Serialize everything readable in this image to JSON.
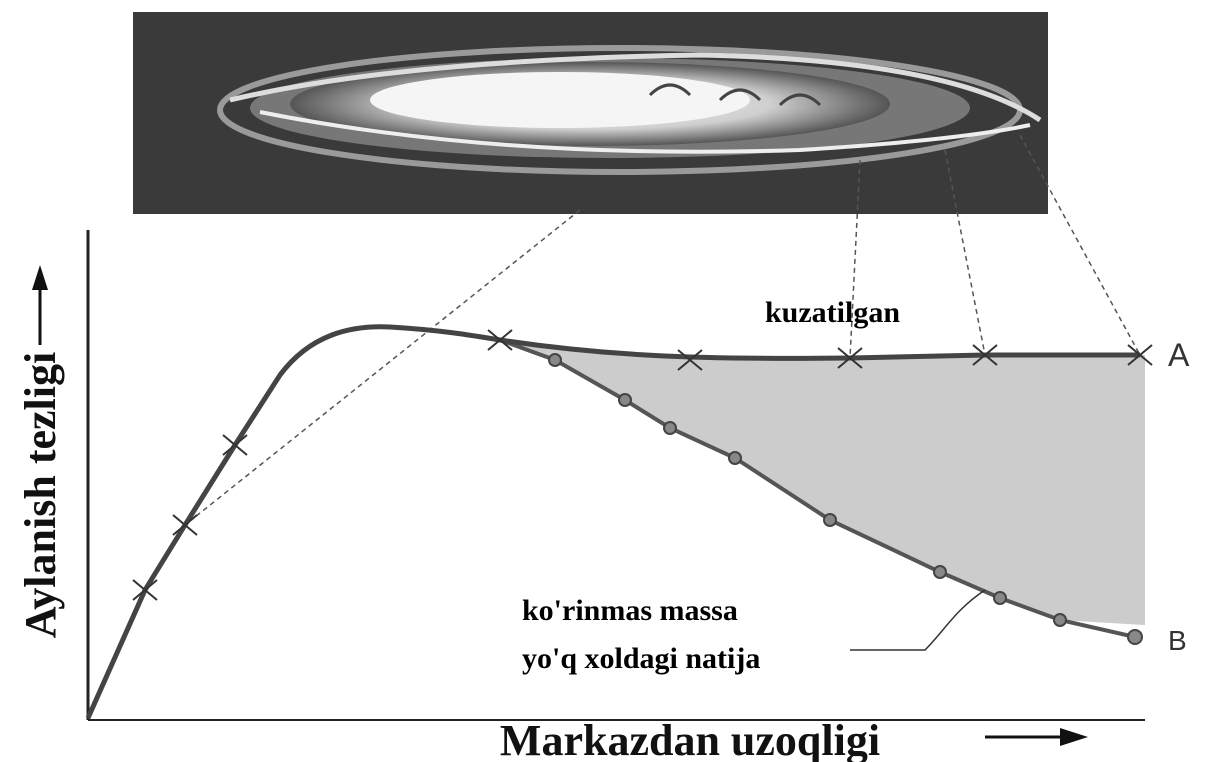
{
  "curve_labels": {
    "observed": "kuzatilgan",
    "a": "A",
    "b": "B"
  },
  "annotation": {
    "line1": "ko'rinmas massa",
    "line2": "yo'q xoldagi natija"
  },
  "axes": {
    "x_label": "Markazdan uzoqligi",
    "y_label": "Aylanish tezligi"
  }
}
